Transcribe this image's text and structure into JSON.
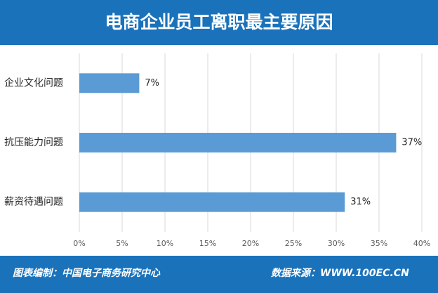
{
  "chart_data": {
    "type": "barh",
    "title": "电商企业员工离职最主要原因",
    "categories": [
      "企业文化问题",
      "抗压能力问题",
      "薪资待遇问题"
    ],
    "values": [
      7,
      37,
      31
    ],
    "value_labels": [
      "7%",
      "37%",
      "31%"
    ],
    "color": "#5b9bd5",
    "xlim": [
      0,
      40
    ],
    "xticks": [
      {
        "value": 0,
        "label": "0%"
      },
      {
        "value": 5,
        "label": "5%"
      },
      {
        "value": 10,
        "label": "10%"
      },
      {
        "value": 15,
        "label": "15%"
      },
      {
        "value": 20,
        "label": "20%"
      },
      {
        "value": 25,
        "label": "25%"
      },
      {
        "value": 30,
        "label": "30%"
      },
      {
        "value": 35,
        "label": "35%"
      },
      {
        "value": 40,
        "label": "40%"
      }
    ],
    "grid": true
  },
  "footer": {
    "left": "图表编制：中国电子商务研究中心",
    "right": "数据来源：WWW.100EC.CN"
  }
}
